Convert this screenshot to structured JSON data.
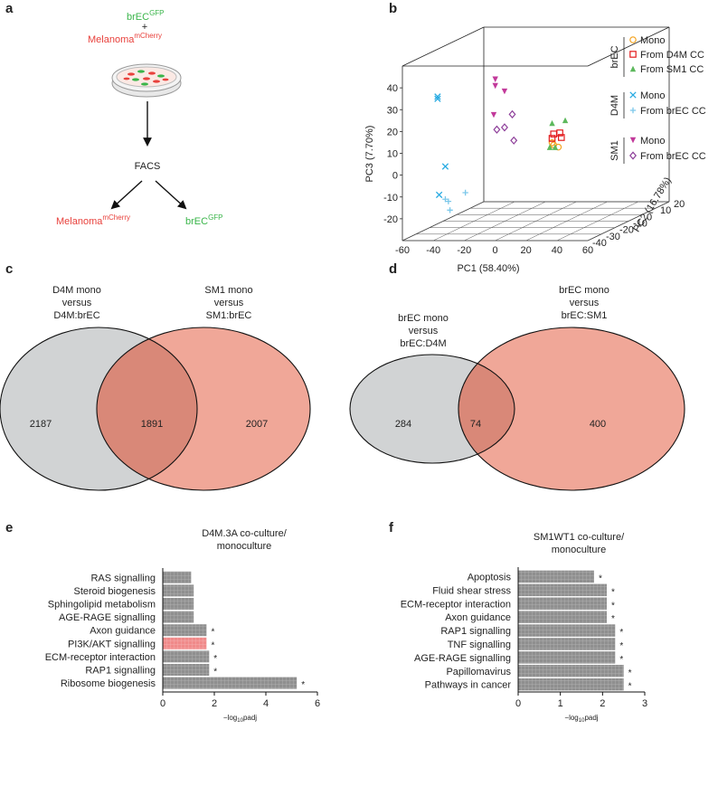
{
  "panel_labels": [
    "a",
    "b",
    "c",
    "d",
    "e",
    "f"
  ],
  "diagram": {
    "inputs": [
      {
        "name": "brEC",
        "sup": "GFP"
      },
      {
        "name": "Melanoma",
        "sup": "mCherry"
      }
    ],
    "plus": "+",
    "step": "FACS",
    "outputs": [
      {
        "name": "Melanoma",
        "sup": "mCherry"
      },
      {
        "name": "brEC",
        "sup": "GFP"
      }
    ]
  },
  "chart_data": [
    {
      "type": "scatter3d",
      "xlabel": "PC1 (58.40%)",
      "ylabel": "PC2 (16.78%)",
      "zlabel": "PC3 (7.70%)",
      "xlim": [
        -60,
        60
      ],
      "ylim": [
        -40,
        20
      ],
      "zlim": [
        -30,
        50
      ],
      "xticks": [
        -60,
        -40,
        -20,
        0,
        20,
        40,
        60
      ],
      "yticks": [
        -40,
        -30,
        -20,
        -10,
        0,
        10,
        20
      ],
      "zticks": [
        -20,
        -10,
        0,
        10,
        20,
        30,
        40
      ],
      "grid": true,
      "groups": [
        {
          "name": "brEC",
          "series": [
            {
              "name": "Mono",
              "color": "#f4a21e",
              "marker": "circle",
              "x": [
                -6,
                -3,
                -7
              ],
              "y": [
                10,
                10,
                10
              ],
              "z": [
                -1,
                -2,
                0
              ]
            },
            {
              "name": "From D4M CC",
              "color": "#e31a1c",
              "marker": "square",
              "x": [
                -6,
                -2,
                -7,
                -1
              ],
              "y": [
                10,
                10,
                10,
                10
              ],
              "z": [
                4,
                4.5,
                2,
                2.4
              ]
            },
            {
              "name": "From SM1 CC",
              "color": "#5cb85c",
              "marker": "triangle",
              "x": [
                -7,
                1.5,
                -5,
                -8.5
              ],
              "y": [
                10,
                10,
                10,
                10
              ],
              "z": [
                9,
                10.3,
                -2,
                -2
              ]
            }
          ]
        },
        {
          "name": "D4M",
          "series": [
            {
              "name": "Mono",
              "color": "#29abe2",
              "marker": "x",
              "x": [
                -46,
                -46,
                -41,
                -45
              ],
              "y": [
                -30,
                -30,
                -30,
                -30
              ],
              "z": [
                33,
                32,
                1,
                -12
              ]
            },
            {
              "name": "From brEC CC",
              "color": "#7cc8ea",
              "marker": "plus",
              "x": [
                -39,
                -28,
                -38,
                -41
              ],
              "y": [
                -30,
                -30,
                -30,
                -30
              ],
              "z": [
                -15,
                -11,
                -19,
                -14
              ]
            }
          ]
        },
        {
          "name": "SM1",
          "series": [
            {
              "name": "Mono",
              "color": "#c2399a",
              "marker": "triangle-down",
              "x": [
                -35,
                -35,
                -29,
                -36
              ],
              "y": [
                0,
                0,
                0,
                0
              ],
              "z": [
                32,
                29,
                26.5,
                15.7
              ]
            },
            {
              "name": "From brEC CC",
              "color": "#8e3f9a",
              "marker": "diamond",
              "x": [
                -24,
                -34,
                -23,
                -29
              ],
              "y": [
                0,
                0,
                0,
                0
              ],
              "z": [
                16,
                9,
                4,
                10
              ]
            }
          ]
        }
      ]
    },
    {
      "type": "venn",
      "sets": [
        {
          "label": [
            "D4M mono",
            "versus",
            "D4M:brEC"
          ],
          "count": 2187,
          "color": "#d1d3d4"
        },
        {
          "label": [
            "SM1 mono",
            "versus",
            "SM1:brEC"
          ],
          "count": 2007,
          "color": "#f0a798"
        }
      ],
      "overlap_count": 1891,
      "overlap_color": "#d98878"
    },
    {
      "type": "venn",
      "sets": [
        {
          "label": [
            "brEC mono",
            "versus",
            "brEC:D4M"
          ],
          "count": 284,
          "color": "#d1d3d4"
        },
        {
          "label": [
            "brEC mono",
            "versus",
            "brEC:SM1"
          ],
          "count": 400,
          "color": "#f0a798"
        }
      ],
      "overlap_count": 74,
      "overlap_color": "#d98878"
    },
    {
      "type": "hbar",
      "title": [
        "D4M.3A co-culture/",
        "monoculture"
      ],
      "categories": [
        "RAS signalling",
        "Steroid biogenesis",
        "Sphingolipid metabolism",
        "AGE-RAGE signalling",
        "Axon guidance",
        "PI3K/AKT signalling",
        "ECM-receptor interaction",
        "RAP1 signalling",
        "Ribosome biogenesis"
      ],
      "values": [
        1.1,
        1.2,
        1.2,
        1.2,
        1.7,
        1.7,
        1.8,
        1.8,
        5.2
      ],
      "colors": [
        "#8f8f8f",
        "#8f8f8f",
        "#8f8f8f",
        "#8f8f8f",
        "#8f8f8f",
        "#f08a8a",
        "#8f8f8f",
        "#8f8f8f",
        "#8f8f8f"
      ],
      "annotations": [
        null,
        null,
        null,
        null,
        "*",
        "*",
        "*",
        "*",
        "*"
      ],
      "xlim": [
        0,
        6
      ],
      "xticks": [
        0,
        2,
        4,
        6
      ],
      "xlabel": "−log",
      "xlabel_sub": "10",
      "xlabel_tail": "padj"
    },
    {
      "type": "hbar",
      "title": [
        "SM1WT1 co-culture/",
        "monoculture"
      ],
      "categories": [
        "Apoptosis",
        "Fluid shear stress",
        "ECM-receptor interaction",
        "Axon guidance",
        "RAP1 signalling",
        "TNF signalling",
        "AGE-RAGE signalling",
        "Papillomavirus",
        "Pathways in cancer"
      ],
      "values": [
        1.8,
        2.1,
        2.1,
        2.1,
        2.3,
        2.3,
        2.3,
        2.5,
        2.5
      ],
      "colors": [
        "#8f8f8f",
        "#8f8f8f",
        "#8f8f8f",
        "#8f8f8f",
        "#8f8f8f",
        "#8f8f8f",
        "#8f8f8f",
        "#8f8f8f",
        "#8f8f8f"
      ],
      "annotations": [
        "*",
        "*",
        "*",
        "*",
        "*",
        "*",
        "*",
        "*",
        "*"
      ],
      "xlim": [
        0,
        3
      ],
      "xticks": [
        0,
        1,
        2,
        3
      ],
      "xlabel": "−log",
      "xlabel_sub": "10",
      "xlabel_tail": "padj"
    }
  ]
}
